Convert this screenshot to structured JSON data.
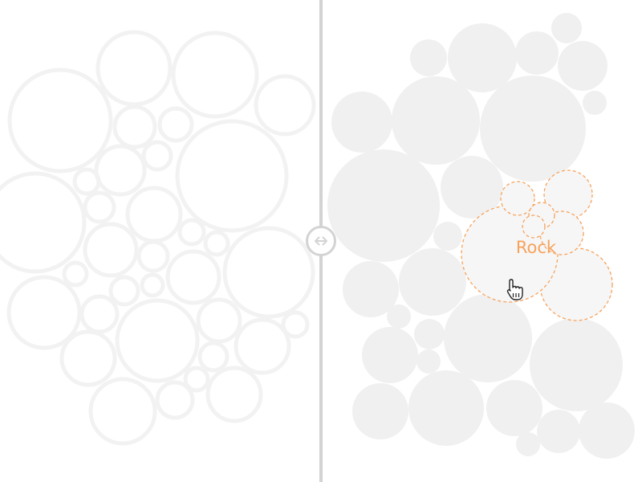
{
  "highlight": {
    "label": "Rock",
    "accent_color": "#f7a35c"
  },
  "colors": {
    "outline_circle": "#f2f2f2",
    "filled_circle": "#f0f0f0",
    "divider": "#d3d3d3"
  },
  "icons": {
    "handle": "left-right-arrow-icon",
    "cursor": "hand-pointer-cursor-icon"
  }
}
